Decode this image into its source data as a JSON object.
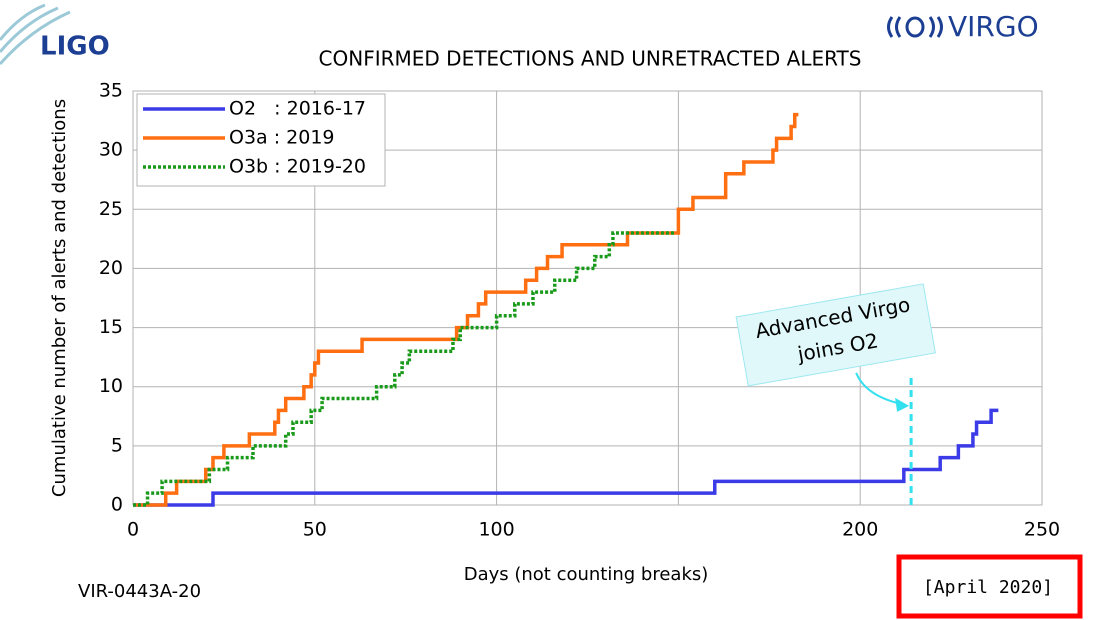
{
  "logos": {
    "ligo": "LIGO",
    "virgo": "VIRGO"
  },
  "footer": {
    "doc_id": "VIR-0443A-20",
    "date": "[April 2020]"
  },
  "chart_data": {
    "type": "step",
    "title": "CONFIRMED DETECTIONS AND UNRETRACTED ALERTS",
    "x_label": "Days (not counting breaks)",
    "y_label": "Cumulative number of alerts and detections",
    "xlim": [
      0,
      250
    ],
    "ylim": [
      0,
      35
    ],
    "xticks": [
      0,
      50,
      100,
      {
        "value": 150,
        "label": null
      },
      200,
      250
    ],
    "yticks": [
      0,
      5,
      10,
      15,
      20,
      25,
      30,
      35
    ],
    "grid": true,
    "legend": "upper left",
    "series": [
      {
        "name": "O2   : 2016-17",
        "color": "#3b3be8",
        "dash": false,
        "x": [
          0,
          22,
          160,
          212,
          222,
          227,
          231,
          232,
          236,
          238
        ],
        "values": [
          0,
          1,
          2,
          3,
          4,
          5,
          6,
          7,
          8,
          8
        ]
      },
      {
        "name": "O3a : 2019",
        "color": "#ff6e10",
        "dash": false,
        "x": [
          0,
          9,
          12,
          20,
          22,
          25,
          32,
          39,
          40,
          42,
          47,
          49,
          50,
          51,
          63,
          89,
          92,
          95,
          97,
          108,
          111,
          114,
          118,
          136,
          150,
          154,
          163,
          168,
          176,
          177,
          181,
          182,
          183
        ],
        "values": [
          0,
          1,
          2,
          3,
          4,
          5,
          6,
          7,
          8,
          9,
          10,
          11,
          12,
          13,
          14,
          15,
          16,
          17,
          18,
          19,
          20,
          21,
          22,
          23,
          25,
          26,
          28,
          29,
          30,
          31,
          32,
          33,
          33
        ]
      },
      {
        "name": "O3b : 2019-20",
        "color": "#1a9a1a",
        "dash": true,
        "x": [
          0,
          4,
          8,
          21,
          26,
          33,
          42,
          44,
          49,
          52,
          67,
          72,
          74,
          76,
          88,
          90,
          100,
          105,
          110,
          116,
          122,
          127,
          131,
          132,
          149
        ],
        "values": [
          0,
          1,
          2,
          3,
          4,
          5,
          6,
          7,
          8,
          9,
          10,
          11,
          12,
          13,
          14,
          15,
          16,
          17,
          18,
          19,
          20,
          21,
          22,
          23,
          23
        ]
      }
    ],
    "annotation": {
      "text_lines": [
        "Advanced Virgo",
        "joins O2"
      ],
      "x": 214,
      "y_top": 11,
      "color": "#33e0f0"
    }
  }
}
